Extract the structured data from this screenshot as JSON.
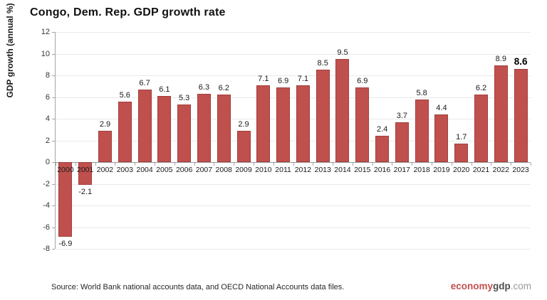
{
  "title": "Congo, Dem. Rep. GDP growth rate",
  "chart_data": {
    "type": "bar",
    "title": "Congo, Dem. Rep. GDP growth rate",
    "xlabel": "",
    "ylabel": "GDP growth (annual %)",
    "ylim": [
      -8,
      12
    ],
    "ytick_step": 2,
    "grid": true,
    "legend": "none",
    "bar_color": "#c0504d",
    "bar_border_color": "#a03f3d",
    "categories": [
      "2000",
      "2001",
      "2002",
      "2003",
      "2004",
      "2005",
      "2006",
      "2007",
      "2008",
      "2009",
      "2010",
      "2011",
      "2012",
      "2013",
      "2014",
      "2015",
      "2016",
      "2017",
      "2018",
      "2019",
      "2020",
      "2021",
      "2022",
      "2023"
    ],
    "values": [
      -6.9,
      -2.1,
      2.9,
      5.6,
      6.7,
      6.1,
      5.3,
      6.3,
      6.2,
      2.9,
      7.1,
      6.9,
      7.1,
      8.5,
      9.5,
      6.9,
      2.4,
      3.7,
      5.8,
      4.4,
      1.7,
      6.2,
      8.9,
      8.6
    ],
    "data_labels": [
      "-6.9",
      "-2.1",
      "2.9",
      "5.6",
      "6.7",
      "6.1",
      "5.3",
      "6.3",
      "6.2",
      "2.9",
      "7.1",
      "6.9",
      "7.1",
      "8.5",
      "9.5",
      "6.9",
      "2.4",
      "3.7",
      "5.8",
      "4.4",
      "1.7",
      "6.2",
      "8.9",
      "8.6"
    ],
    "highlighted_label_index": 23
  },
  "footer": {
    "source": "Source:  World Bank national accounts data, and OECD National Accounts data files.",
    "logo": {
      "part1": "economy",
      "part2": "gdp",
      "part3": ".com",
      "color1": "#c0504d",
      "color2": "#4d4d4d",
      "color3": "#9a9a9a"
    }
  }
}
